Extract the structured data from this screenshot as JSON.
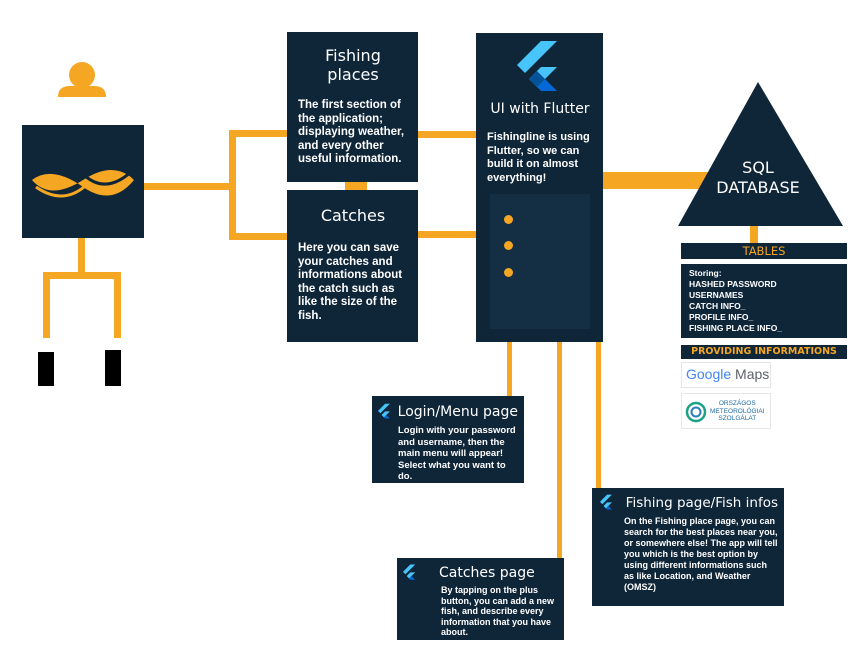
{
  "colors": {
    "navy": "#0f2639",
    "accent": "#f5a623",
    "flutter_light": "#47c5fb",
    "flutter_dark": "#0468d7"
  },
  "fishing_places": {
    "title": "Fishing places",
    "text": "The first section of the application; displaying weather, and every other useful information."
  },
  "catches": {
    "title": "Catches",
    "text": "Here you can save your catches and informations about the catch such as like the size of the fish."
  },
  "flutter": {
    "title": "UI with Flutter",
    "text": "Fishingline is using Flutter, so we can build it on almost everything!",
    "icon": "flutter-logo-icon"
  },
  "database": {
    "line1": "SQL",
    "line2": "DATABASE"
  },
  "tables": {
    "header": "TABLES",
    "storing_label": "Storing:",
    "items": [
      "HASHED PASSWORD",
      "USERNAMES",
      "CATCH INFO_",
      "PROFILE INFO_",
      "FISHING PLACE INFO_"
    ]
  },
  "providing": {
    "header": "PROVIDING INFORMATIONS",
    "google_word": "Google",
    "maps_word": "Maps",
    "omsz_lines": [
      "ORSZÁGOS",
      "METEOROLÓGIAI",
      "SZOLGÁLAT"
    ]
  },
  "login_page": {
    "title": "Login/Menu page",
    "text": "Login with your password and username, then the main menu will appear! Select what you want to do."
  },
  "fishing_page": {
    "title": "Fishing page/Fish infos",
    "text": "On the Fishing place page, you can search for the best places near you, or somewhere else! The app will tell you which is the best option by using different informations such as like Location, and Weather (OMSZ)"
  },
  "catches_page": {
    "title": "Catches page",
    "text": "By tapping on the plus button, you can add a new fish, and describe every information that you have about."
  }
}
